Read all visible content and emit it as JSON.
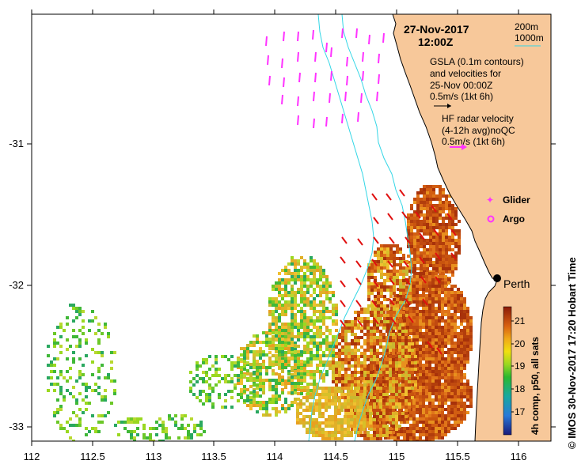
{
  "map": {
    "date": "27-Nov-2017",
    "time": "12:00Z",
    "depth_contours": [
      "200m",
      "1000m"
    ],
    "gsla_line1": "GSLA (0.1m contours)",
    "gsla_line2": "and velocities for",
    "gsla_line3": "25-Nov 00:00Z",
    "gsla_scale": "0.5m/s (1kt 6h)",
    "hf_line1": "HF radar velocity",
    "hf_line2": "(4-12h avg)noQC",
    "hf_scale": "0.5m/s (1kt 6h)",
    "legend_glider": "Glider",
    "legend_argo": "Argo",
    "city": "Perth",
    "x_ticks": [
      "112",
      "112.5",
      "113",
      "113.5",
      "114",
      "114.5",
      "115",
      "115.5",
      "116"
    ],
    "y_ticks": [
      "-31",
      "-32",
      "-33"
    ],
    "colorbar_ticks": [
      "21",
      "20",
      "19",
      "18",
      "17"
    ],
    "colorbar_label": "4h comp, p50, all sats",
    "credit": "©  IMOS 30-Nov-2017 17:20 Hobart Time",
    "colors": {
      "land": "#f7c89a",
      "hf_radar": "#ff33ff",
      "gsla": "#e01010",
      "contour": "#33d6e6",
      "glider": "#ff33ff"
    }
  }
}
